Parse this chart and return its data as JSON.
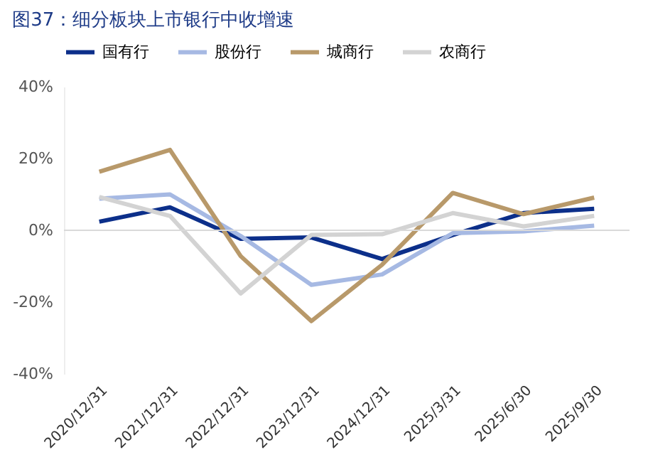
{
  "chart_data": {
    "type": "line",
    "title": "图37：细分板块上市银行中收增速",
    "categories": [
      "2020/12/31",
      "2021/12/31",
      "2022/12/31",
      "2023/12/31",
      "2024/12/31",
      "2025/3/31",
      "2025/6/30",
      "2025/9/30"
    ],
    "series": [
      {
        "name": "国有行",
        "color": "#0c2f8a",
        "values": [
          2.4,
          6.4,
          -2.4,
          -2,
          -8,
          -1.3,
          4.8,
          6
        ]
      },
      {
        "name": "股份行",
        "color": "#a6b9e3",
        "values": [
          8.8,
          10,
          -1.6,
          -15.2,
          -12.3,
          -0.8,
          -0.3,
          1.3
        ]
      },
      {
        "name": "城商行",
        "color": "#b8996a",
        "values": [
          16.3,
          22.4,
          -7.2,
          -25.3,
          -9.6,
          10.4,
          4.5,
          9.1
        ]
      },
      {
        "name": "农商行",
        "color": "#d3d3d3",
        "values": [
          9.3,
          4,
          -17.6,
          -1.3,
          -1.1,
          4.8,
          1.1,
          4
        ]
      }
    ],
    "ylim": [
      -40,
      40
    ],
    "yticks": [
      {
        "value": -40,
        "label": "-40%"
      },
      {
        "value": -20,
        "label": "-20%"
      },
      {
        "value": 0,
        "label": "0%"
      },
      {
        "value": 20,
        "label": "20%"
      },
      {
        "value": 40,
        "label": "40%"
      }
    ],
    "ref_lines": [
      {
        "axis": "y",
        "value": 0,
        "label": null,
        "color": "#d9d9d9"
      }
    ],
    "grid": false,
    "legend": "top",
    "marker": "none",
    "line_style": "solid"
  }
}
